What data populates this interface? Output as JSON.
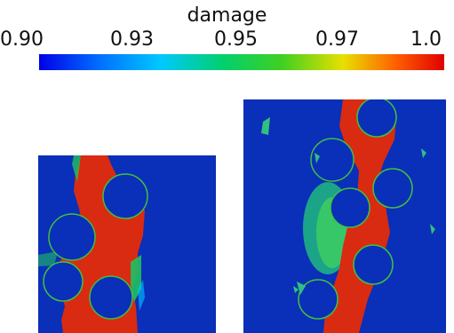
{
  "colorbar": {
    "title": "damage",
    "ticks": [
      "0.90",
      "0.93",
      "0.95",
      "0.97",
      "1.0"
    ],
    "colors": [
      "#0000e6",
      "#00a0ff",
      "#00d060",
      "#40d020",
      "#e8e000",
      "#ff6000",
      "#e00000"
    ]
  },
  "panels": {
    "background_color": "#0a2fb8",
    "damage_color": "#d92b12"
  }
}
